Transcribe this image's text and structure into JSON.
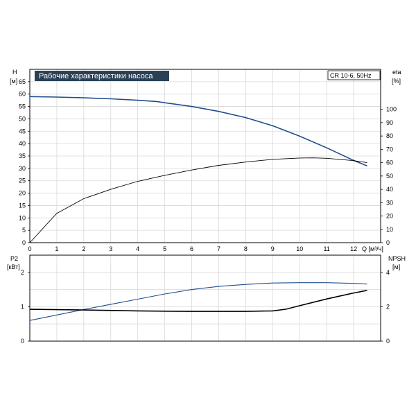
{
  "colors": {
    "head": "#1f4e8c",
    "efficiency": "#000000",
    "power": "#1f4e8c",
    "npsh": "#000000",
    "title_bg": "#2a4155",
    "grid": "#d7d7d7"
  },
  "chart_data": [
    {
      "type": "line",
      "title": "Рабочие характеристики насоса",
      "badge": "CR 10-6, 50Hz",
      "xlabel": "Q [м³/ч]",
      "ylabel": "H",
      "ylabel_unit": "[м]",
      "y2label": "eta",
      "y2label_unit": "[%]",
      "xlim": [
        0,
        13
      ],
      "ylim": [
        0,
        70
      ],
      "y2lim": [
        0,
        130
      ],
      "grid": true,
      "x_ticks": [
        0,
        1,
        2,
        3,
        4,
        5,
        6,
        7,
        8,
        9,
        10,
        11,
        12
      ],
      "y_ticks": [
        0,
        5,
        10,
        15,
        20,
        25,
        30,
        35,
        40,
        45,
        50,
        55,
        60,
        65
      ],
      "y2_ticks": [
        0,
        10,
        20,
        30,
        40,
        50,
        60,
        70,
        80,
        90,
        100
      ],
      "series": [
        {
          "axis": "left",
          "x": [
            0,
            1,
            2,
            3,
            4,
            4.7,
            5,
            6,
            7,
            8,
            9,
            10,
            11,
            12,
            12.5
          ],
          "y": [
            59,
            58.8,
            58.5,
            58.1,
            57.5,
            57.0,
            56.5,
            55.0,
            53.0,
            50.5,
            47.2,
            43.0,
            38.3,
            33.2,
            31.0
          ]
        },
        {
          "axis": "right",
          "x": [
            0,
            1,
            2,
            3,
            4,
            5,
            6,
            7,
            8,
            9,
            10,
            10.5,
            11,
            12,
            12.5
          ],
          "y": [
            0,
            22,
            33,
            40,
            46,
            50.5,
            54.5,
            58,
            60.5,
            62.5,
            63.5,
            63.6,
            63.3,
            61.5,
            60
          ]
        }
      ]
    },
    {
      "type": "line",
      "ylabel": "P2",
      "ylabel_unit": "[кВт]",
      "y2label": "NPSH",
      "y2label_unit": "[м]",
      "xlim": [
        0,
        13
      ],
      "ylim": [
        0,
        2.5
      ],
      "y2lim": [
        0,
        5
      ],
      "grid": true,
      "y_ticks": [
        0,
        1,
        2
      ],
      "y2_ticks": [
        0,
        2,
        4
      ],
      "series": [
        {
          "axis": "left",
          "x": [
            0,
            1,
            2,
            3,
            4,
            5,
            6,
            7,
            8,
            9,
            10,
            11,
            12,
            12.5
          ],
          "y": [
            0.6,
            0.76,
            0.92,
            1.07,
            1.22,
            1.37,
            1.5,
            1.59,
            1.65,
            1.69,
            1.7,
            1.7,
            1.68,
            1.66
          ]
        },
        {
          "axis": "right",
          "x": [
            0,
            2,
            4,
            5,
            6,
            7,
            8,
            9,
            9.5,
            10,
            11,
            12,
            12.5
          ],
          "y": [
            1.85,
            1.81,
            1.76,
            1.74,
            1.73,
            1.73,
            1.73,
            1.76,
            1.86,
            2.06,
            2.45,
            2.8,
            2.95
          ]
        }
      ]
    }
  ]
}
